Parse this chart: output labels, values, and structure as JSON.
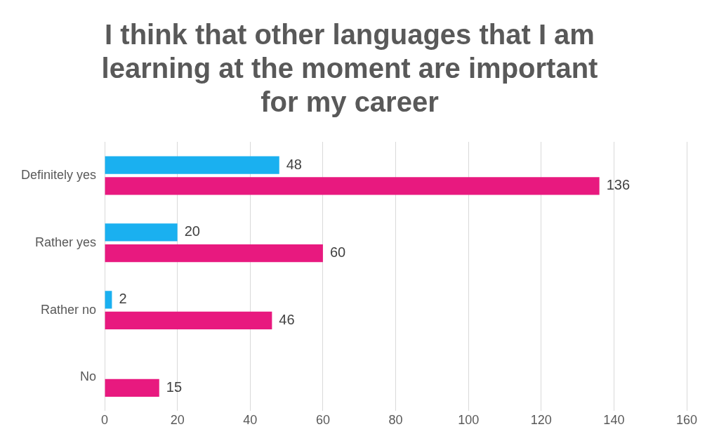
{
  "chart_data": {
    "type": "bar",
    "orientation": "horizontal",
    "title": "I think that other languages that I am learning at the moment are important for my career",
    "categories": [
      "Definitely yes",
      "Rather yes",
      "Rather no",
      "No"
    ],
    "series": [
      {
        "color": "#1ab0f0",
        "values": [
          48,
          20,
          2,
          null
        ]
      },
      {
        "color": "#e8197f",
        "values": [
          136,
          60,
          46,
          15
        ]
      }
    ],
    "xlim": [
      0,
      160
    ],
    "xticks": [
      0,
      20,
      40,
      60,
      80,
      100,
      120,
      140,
      160
    ],
    "grid": "x",
    "data_labels": true,
    "legend": false
  }
}
